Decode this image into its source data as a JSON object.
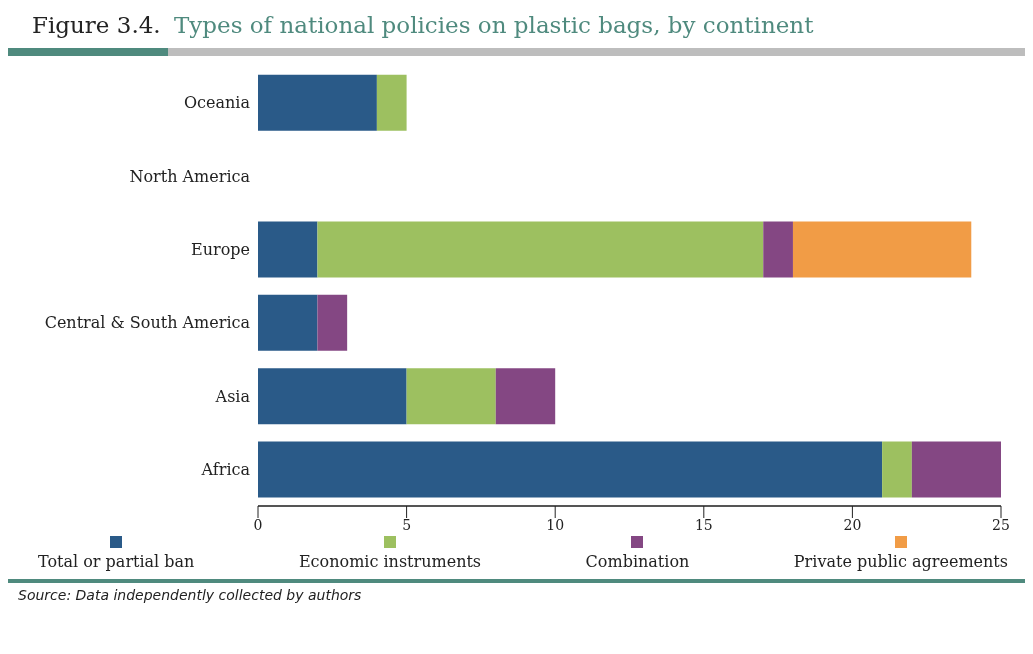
{
  "chart_data": {
    "type": "bar",
    "orientation": "horizontal",
    "stacked": true,
    "title": "Figure 3.4.",
    "subtitle": "Types of national policies on plastic bags, by continent",
    "categories": [
      "Oceania",
      "North America",
      "Europe",
      "Central & South America",
      "Asia",
      "Africa"
    ],
    "series": [
      {
        "name": "Total or partial ban",
        "color": "#2a5a88",
        "values": [
          4,
          null,
          2,
          2,
          5,
          21
        ]
      },
      {
        "name": "Economic instruments",
        "color": "#9dc060",
        "values": [
          1,
          null,
          15,
          null,
          3,
          1
        ]
      },
      {
        "name": "Combination",
        "color": "#844783",
        "values": [
          null,
          null,
          1,
          1,
          2,
          3
        ]
      },
      {
        "name": "Private public agreements",
        "color": "#f19c46",
        "values": [
          null,
          null,
          6,
          null,
          null,
          null
        ]
      }
    ],
    "xlim": [
      0,
      25
    ],
    "xticks": [
      0,
      5,
      10,
      15,
      20,
      25
    ],
    "grid": false,
    "legend": "bottom",
    "annotations": [
      "Source:  Data independently collected by authors"
    ]
  }
}
